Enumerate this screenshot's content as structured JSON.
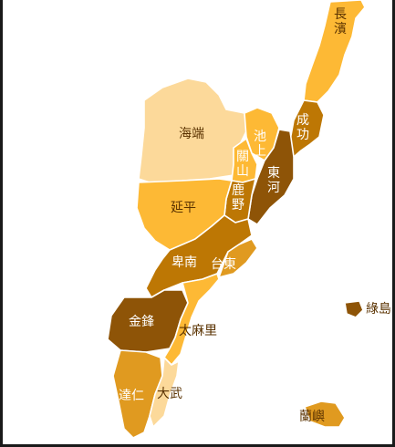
{
  "map": {
    "colors": {
      "pale": "#fcd99a",
      "light": "#fdb935",
      "medium": "#e09a20",
      "darkish": "#bd7704",
      "dark": "#8e5407"
    },
    "regions": [
      {
        "id": "changbin",
        "label": "長濱",
        "tone": "light"
      },
      {
        "id": "chenggong",
        "label": "成功",
        "tone": "darkish"
      },
      {
        "id": "haiduan",
        "label": "海端",
        "tone": "pale"
      },
      {
        "id": "chishang",
        "label": "池上",
        "tone": "light"
      },
      {
        "id": "guanshan",
        "label": "關山",
        "tone": "light"
      },
      {
        "id": "donghe",
        "label": "東河",
        "tone": "dark"
      },
      {
        "id": "luye",
        "label": "鹿野",
        "tone": "darkish"
      },
      {
        "id": "yanping",
        "label": "延平",
        "tone": "light"
      },
      {
        "id": "beinan",
        "label": "卑南",
        "tone": "darkish"
      },
      {
        "id": "taitung",
        "label": "台東",
        "tone": "medium"
      },
      {
        "id": "jinfeng",
        "label": "金鋒",
        "tone": "dark"
      },
      {
        "id": "taimali",
        "label": "太麻里",
        "tone": "light"
      },
      {
        "id": "daren",
        "label": "達仁",
        "tone": "medium"
      },
      {
        "id": "dawu",
        "label": "大武",
        "tone": "pale"
      },
      {
        "id": "ludao",
        "label": "綠島",
        "tone": "dark"
      },
      {
        "id": "lanyu",
        "label": "蘭嶼",
        "tone": "medium"
      }
    ]
  }
}
